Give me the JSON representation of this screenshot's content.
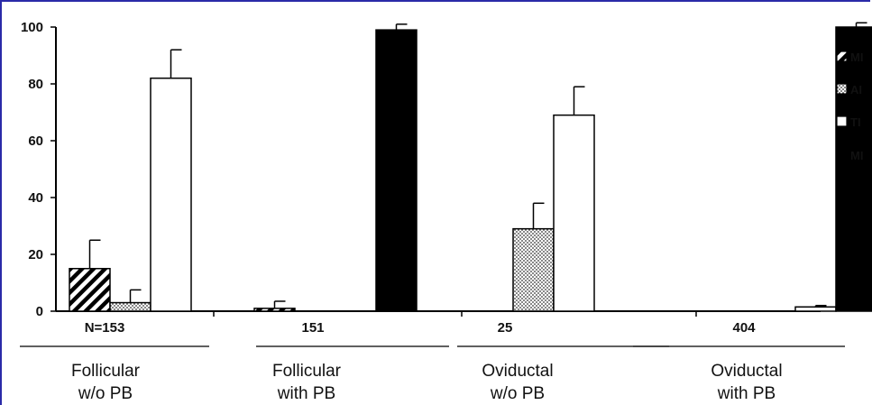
{
  "chart_data": {
    "type": "bar",
    "ylim": [
      0,
      100
    ],
    "yticks": [
      0,
      20,
      40,
      60,
      80,
      100
    ],
    "grid": false,
    "legend_position": "right",
    "groups": [
      {
        "count": "N=153",
        "line1": "Follicular",
        "line2": "w/o PB"
      },
      {
        "count": "151",
        "line1": "Follicular",
        "line2": "with PB"
      },
      {
        "count": "25",
        "line1": "Oviductal",
        "line2": "w/o PB"
      },
      {
        "count": "404",
        "line1": "Oviductal",
        "line2": "with PB"
      }
    ],
    "series": [
      {
        "name": "MI",
        "pattern": "hatch",
        "values": [
          15,
          1,
          0,
          0
        ],
        "errors": [
          10,
          2.5,
          0,
          0
        ]
      },
      {
        "name": "AI",
        "pattern": "dots",
        "values": [
          3,
          0,
          29,
          0
        ],
        "errors": [
          4.5,
          0,
          9,
          0
        ]
      },
      {
        "name": "TI",
        "pattern": "white",
        "values": [
          82,
          0,
          69,
          1.5
        ],
        "errors": [
          10,
          0,
          10,
          0.5
        ]
      },
      {
        "name": "MI",
        "pattern": "black",
        "values": [
          0,
          99,
          0,
          100
        ],
        "errors": [
          0,
          2,
          0,
          1.5
        ]
      }
    ]
  }
}
